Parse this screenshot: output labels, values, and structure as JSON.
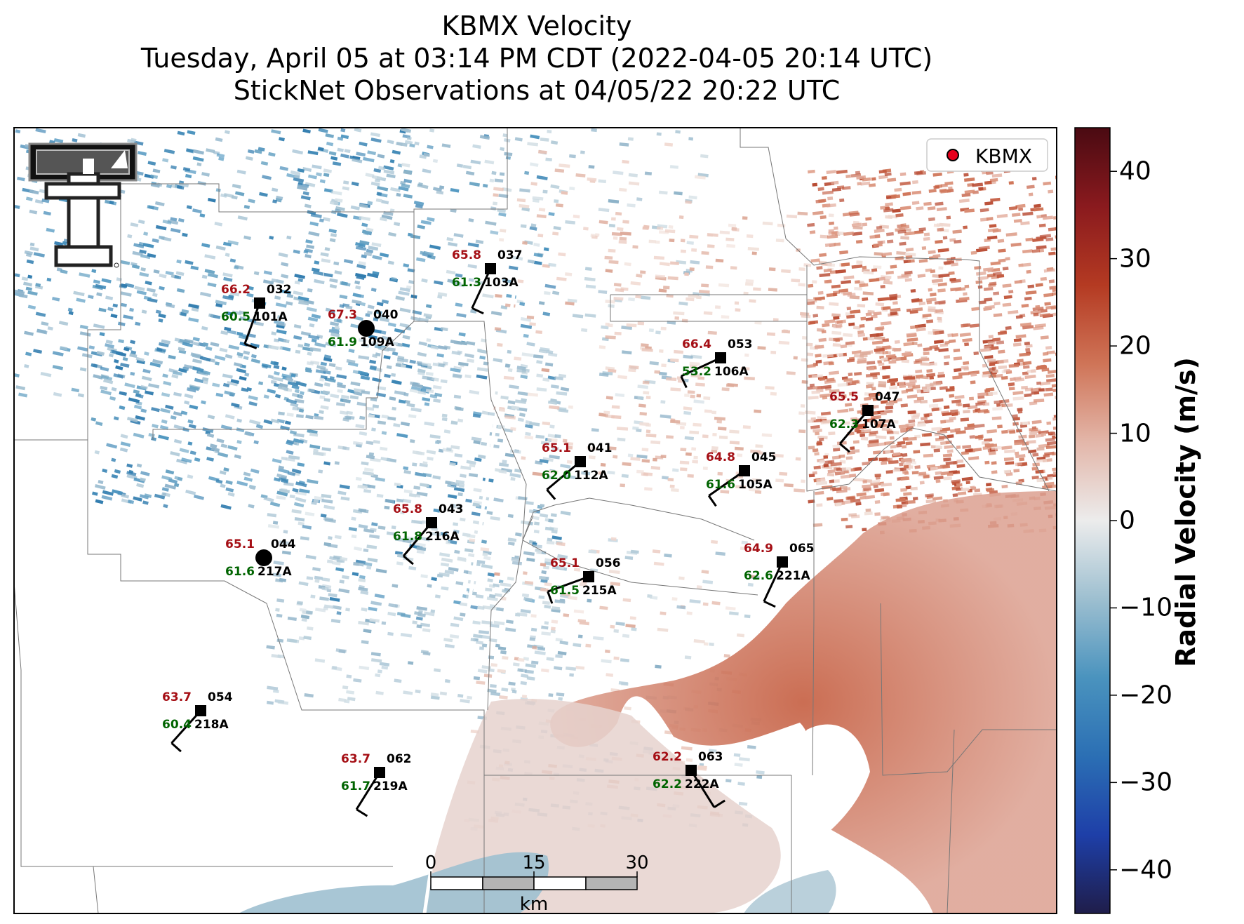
{
  "title": {
    "line1": "KBMX Velocity",
    "line2": "Tuesday, April 05 at 03:14 PM CDT (2022-04-05 20:14 UTC)",
    "line3": "StickNet Observations at 04/05/22 20:22 UTC"
  },
  "legend": {
    "label": "KBMX",
    "marker_color": "#e8001c"
  },
  "colorbar": {
    "label": "Radial Velocity (m/s)",
    "ticks": [
      "40",
      "30",
      "20",
      "10",
      "0",
      "−10",
      "−20",
      "−30",
      "−40"
    ],
    "tick_values": [
      40,
      30,
      20,
      10,
      0,
      -10,
      -20,
      -30,
      -40
    ],
    "range": [
      -45,
      45
    ],
    "colors": [
      "#1f1d4a",
      "#1e3fa8",
      "#2b6fb4",
      "#4a93be",
      "#9dbfd0",
      "#ececec",
      "#e3b6a9",
      "#cf7457",
      "#b43a22",
      "#8a1a1e",
      "#4a0a12"
    ]
  },
  "scalebar": {
    "ticks": [
      "0",
      "15",
      "30"
    ],
    "unit": "km"
  },
  "colors": {
    "temp": "#a50f15",
    "dewpoint": "#006400",
    "station": "#000000"
  },
  "stations": [
    {
      "id": "101A",
      "temp": "66.2",
      "dew": "60.5",
      "dir": "032",
      "calm": false
    },
    {
      "id": "103A",
      "temp": "65.8",
      "dew": "61.3",
      "dir": "037",
      "calm": false
    },
    {
      "id": "109A",
      "temp": "67.3",
      "dew": "61.9",
      "dir": "040",
      "calm": true
    },
    {
      "id": "106A",
      "temp": "66.4",
      "dew": "53.2",
      "dir": "053",
      "calm": false
    },
    {
      "id": "107A",
      "temp": "65.5",
      "dew": "62.3",
      "dir": "047",
      "calm": false
    },
    {
      "id": "112A",
      "temp": "65.1",
      "dew": "62.0",
      "dir": "041",
      "calm": false
    },
    {
      "id": "105A",
      "temp": "64.8",
      "dew": "61.6",
      "dir": "045",
      "calm": false
    },
    {
      "id": "216A",
      "temp": "65.8",
      "dew": "61.8",
      "dir": "043",
      "calm": false
    },
    {
      "id": "217A",
      "temp": "65.1",
      "dew": "61.6",
      "dir": "044",
      "calm": true
    },
    {
      "id": "215A",
      "temp": "65.1",
      "dew": "61.5",
      "dir": "056",
      "calm": false
    },
    {
      "id": "221A",
      "temp": "64.9",
      "dew": "62.6",
      "dir": "065",
      "calm": false
    },
    {
      "id": "218A",
      "temp": "63.7",
      "dew": "60.4",
      "dir": "054",
      "calm": false
    },
    {
      "id": "219A",
      "temp": "63.7",
      "dew": "61.7",
      "dir": "062",
      "calm": false
    },
    {
      "id": "222A",
      "temp": "62.2",
      "dew": "62.2",
      "dir": "063",
      "calm": false
    }
  ]
}
